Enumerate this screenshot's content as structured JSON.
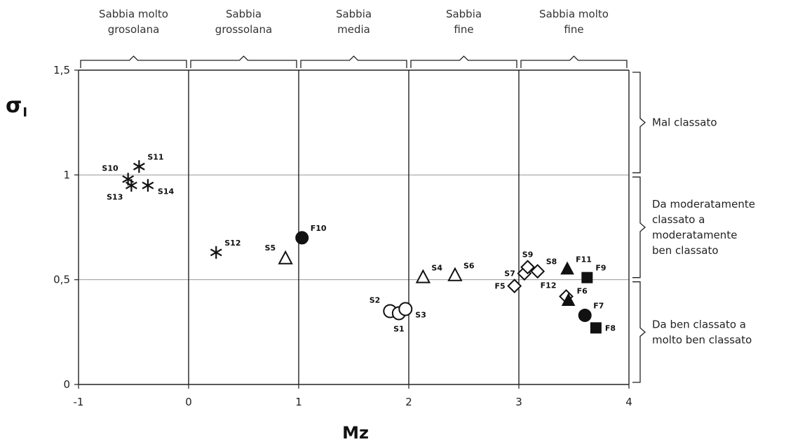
{
  "chart_data": {
    "type": "scatter",
    "xlabel": "Mz",
    "ylabel": "σ",
    "ylabel_sub": "I",
    "xlim": [
      -1,
      4
    ],
    "ylim": [
      0,
      1.5
    ],
    "x_ticks": [
      {
        "value": -1,
        "label": "-1"
      },
      {
        "value": 0,
        "label": "0"
      },
      {
        "value": 1,
        "label": "1"
      },
      {
        "value": 2,
        "label": "2"
      },
      {
        "value": 3,
        "label": "3"
      },
      {
        "value": 4,
        "label": "4"
      }
    ],
    "y_ticks": [
      {
        "value": 0,
        "label": "0"
      },
      {
        "value": 0.5,
        "label": "0,5"
      },
      {
        "value": 1,
        "label": "1"
      },
      {
        "value": 1.5,
        "label": "1,5"
      }
    ],
    "vertical_gridlines": true,
    "horizontal_gridlines": [
      0.5,
      1,
      1.5
    ],
    "grain_size_classes": [
      {
        "from": -1,
        "to": 0,
        "lines": [
          "Sabbia molto",
          "grosolana"
        ]
      },
      {
        "from": 0,
        "to": 1,
        "lines": [
          "Sabbia",
          "grossolana"
        ]
      },
      {
        "from": 1,
        "to": 2,
        "lines": [
          "Sabbia",
          "media"
        ]
      },
      {
        "from": 2,
        "to": 3,
        "lines": [
          "Sabbia",
          "fine"
        ]
      },
      {
        "from": 3,
        "to": 4,
        "lines": [
          "Sabbia molto",
          "fine"
        ]
      }
    ],
    "sorting_classes": [
      {
        "from": 1.0,
        "to": 1.5,
        "lines": [
          "Mal classato"
        ]
      },
      {
        "from": 0.5,
        "to": 1.0,
        "lines": [
          "Da moderatamente",
          "classato a",
          "moderatamente",
          "ben classato"
        ]
      },
      {
        "from": 0.0,
        "to": 0.5,
        "lines": [
          "Da ben classato a",
          "molto ben classato"
        ]
      }
    ],
    "points": [
      {
        "label": "S10",
        "x": -0.55,
        "y": 0.98,
        "marker": "asterisk",
        "lpos": "left-up"
      },
      {
        "label": "S11",
        "x": -0.45,
        "y": 1.04,
        "marker": "asterisk",
        "lpos": "right-up"
      },
      {
        "label": "S13",
        "x": -0.52,
        "y": 0.95,
        "marker": "asterisk",
        "lpos": "left-down"
      },
      {
        "label": "S14",
        "x": -0.37,
        "y": 0.95,
        "marker": "asterisk",
        "lpos": "right-down"
      },
      {
        "label": "S12",
        "x": 0.25,
        "y": 0.63,
        "marker": "asterisk",
        "lpos": "right-up"
      },
      {
        "label": "S5",
        "x": 0.88,
        "y": 0.6,
        "marker": "triangle-open",
        "lpos": "left-up"
      },
      {
        "label": "F10",
        "x": 1.03,
        "y": 0.7,
        "marker": "circle-filled",
        "lpos": "right-up"
      },
      {
        "label": "S2",
        "x": 1.83,
        "y": 0.35,
        "marker": "circle-open",
        "lpos": "left-up"
      },
      {
        "label": "S1",
        "x": 1.91,
        "y": 0.34,
        "marker": "circle-open",
        "lpos": "below"
      },
      {
        "label": "S3",
        "x": 1.97,
        "y": 0.36,
        "marker": "circle-open",
        "lpos": "right-down"
      },
      {
        "label": "S4",
        "x": 2.13,
        "y": 0.51,
        "marker": "triangle-open",
        "lpos": "right-up"
      },
      {
        "label": "S6",
        "x": 2.42,
        "y": 0.52,
        "marker": "triangle-open",
        "lpos": "right-up"
      },
      {
        "label": "F5",
        "x": 2.96,
        "y": 0.47,
        "marker": "diamond-open",
        "lpos": "left"
      },
      {
        "label": "S7",
        "x": 3.05,
        "y": 0.53,
        "marker": "diamond-open",
        "lpos": "left"
      },
      {
        "label": "S9",
        "x": 3.08,
        "y": 0.56,
        "marker": "diamond-open",
        "lpos": "up"
      },
      {
        "label": "S8",
        "x": 3.17,
        "y": 0.54,
        "marker": "diamond-open",
        "lpos": "right-up"
      },
      {
        "label": "F11",
        "x": 3.44,
        "y": 0.55,
        "marker": "triangle-filled",
        "lpos": "right-up"
      },
      {
        "label": "F9",
        "x": 3.62,
        "y": 0.51,
        "marker": "square-filled",
        "lpos": "right-up"
      },
      {
        "label": "F12",
        "x": 3.43,
        "y": 0.42,
        "marker": "diamond-open",
        "lpos": "left-up"
      },
      {
        "label": "F6",
        "x": 3.45,
        "y": 0.4,
        "marker": "triangle-filled",
        "lpos": "right-up"
      },
      {
        "label": "F7",
        "x": 3.6,
        "y": 0.33,
        "marker": "circle-filled",
        "lpos": "right-up"
      },
      {
        "label": "F8",
        "x": 3.7,
        "y": 0.27,
        "marker": "square-filled",
        "lpos": "right"
      }
    ]
  }
}
